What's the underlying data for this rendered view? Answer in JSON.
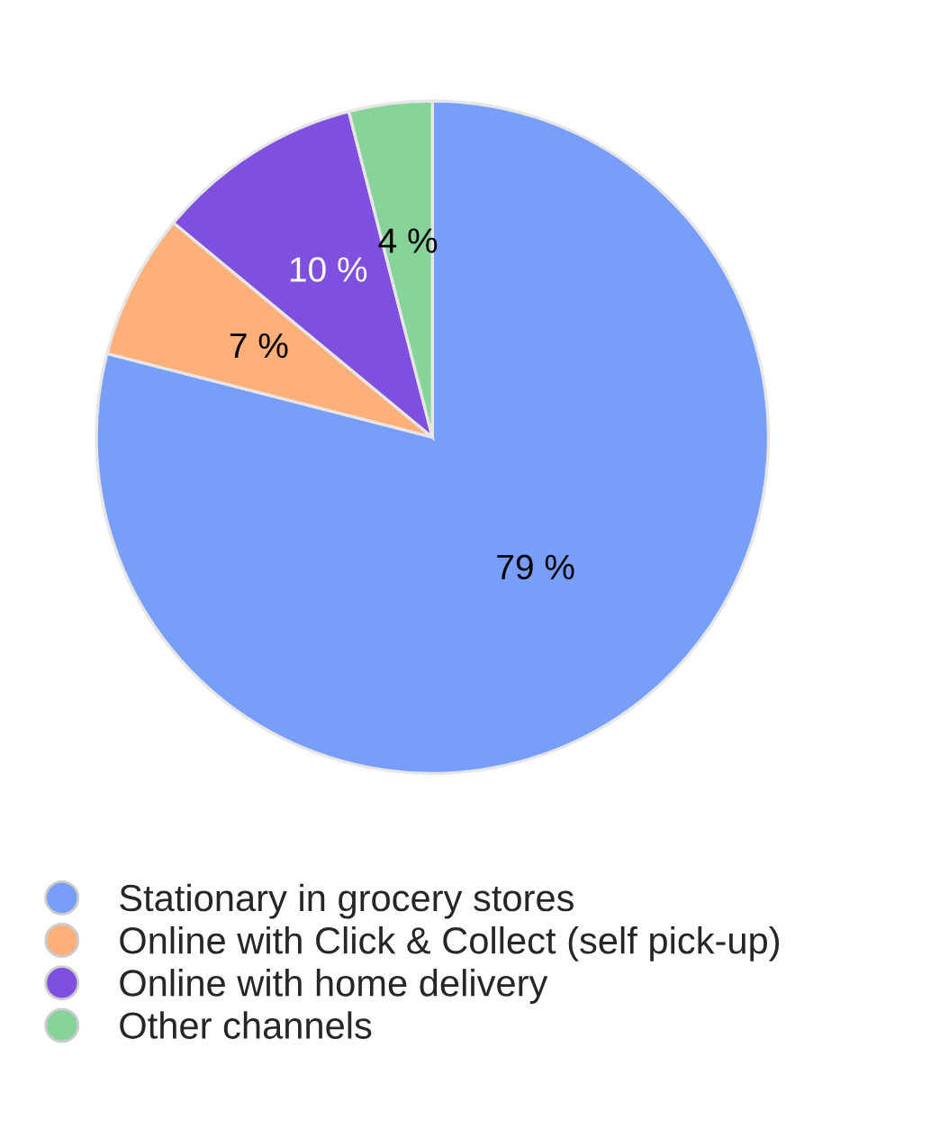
{
  "chart_data": {
    "type": "pie",
    "categories": [
      "Stationary in grocery stores",
      "Online with Click & Collect (self pick-up)",
      "Online with home delivery",
      "Other channels"
    ],
    "values": [
      79,
      7,
      10,
      4
    ],
    "colors": [
      "#789efc",
      "#ffb07a",
      "#7f4fe0",
      "#87d49b"
    ],
    "value_labels": [
      "79 %",
      "7 %",
      "10 %",
      "4 %"
    ],
    "legend": "bottom"
  }
}
